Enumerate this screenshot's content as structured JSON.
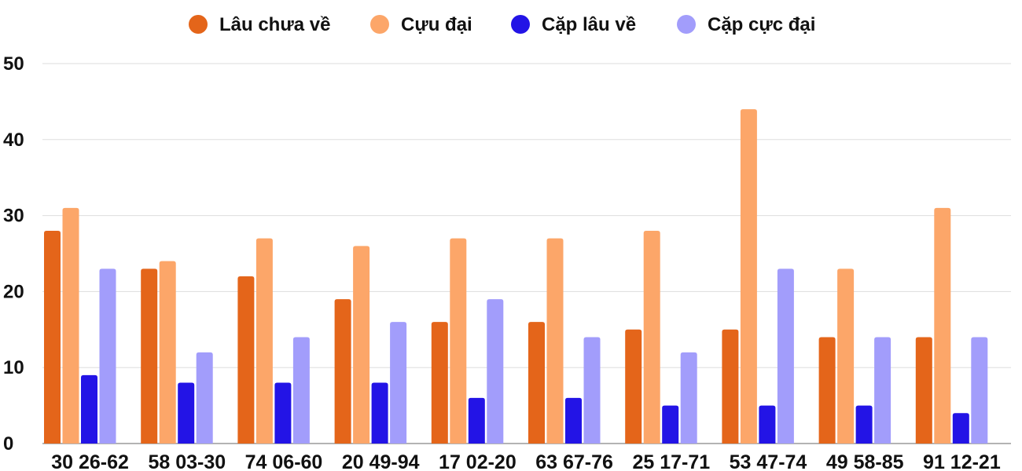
{
  "chart_data": {
    "type": "bar",
    "categories": [
      "30 26-62",
      "58 03-30",
      "74 06-60",
      "20 49-94",
      "17 02-20",
      "63 67-76",
      "25 17-71",
      "53 47-74",
      "49 58-85",
      "91 12-21"
    ],
    "series": [
      {
        "name": "Lâu chưa về",
        "color": "#e4651a",
        "values": [
          28,
          23,
          22,
          19,
          16,
          16,
          15,
          15,
          14,
          14
        ]
      },
      {
        "name": "Cựu đại",
        "color": "#fca669",
        "values": [
          31,
          24,
          27,
          26,
          27,
          27,
          28,
          44,
          23,
          31
        ]
      },
      {
        "name": "Cặp lâu về",
        "color": "#2314e6",
        "values": [
          9,
          8,
          8,
          8,
          6,
          6,
          5,
          5,
          5,
          4
        ]
      },
      {
        "name": "Cặp cực đại",
        "color": "#a29dfb",
        "values": [
          23,
          12,
          14,
          16,
          19,
          14,
          12,
          23,
          14,
          14
        ]
      }
    ],
    "ylim": [
      0,
      50
    ],
    "yticks": [
      0,
      10,
      20,
      30,
      40,
      50
    ],
    "grid": true,
    "legend_position": "top-center"
  }
}
